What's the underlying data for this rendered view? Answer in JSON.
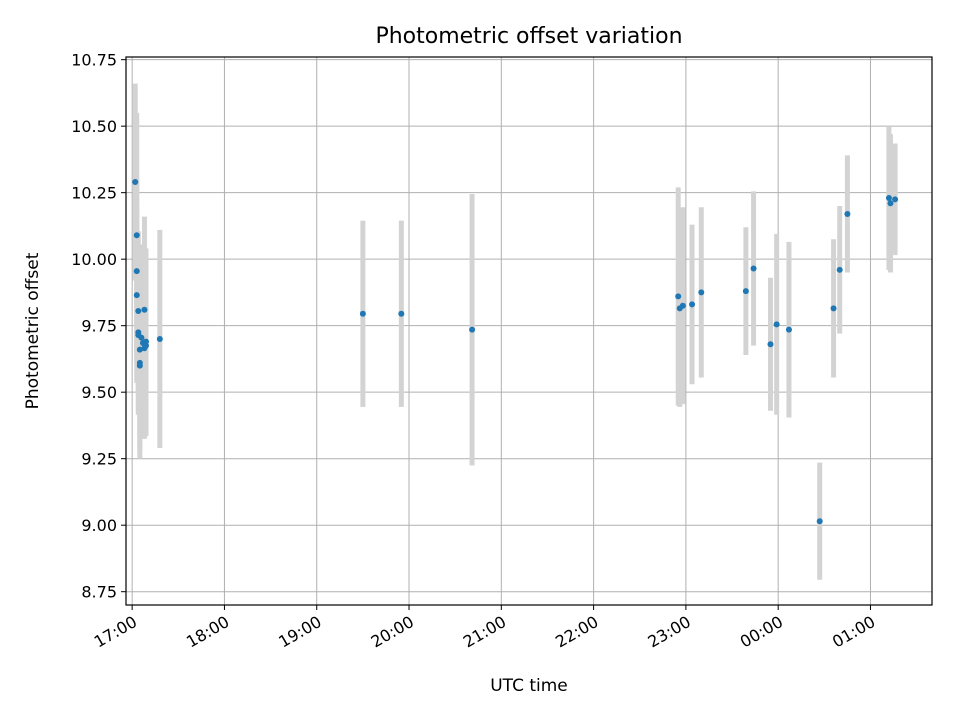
{
  "chart_data": {
    "type": "scatter",
    "title": "Photometric offset variation",
    "xlabel": "UTC time",
    "ylabel": "Photometric offset",
    "x_ticks": [
      "17:00",
      "18:00",
      "19:00",
      "20:00",
      "21:00",
      "22:00",
      "23:00",
      "00:00",
      "01:00"
    ],
    "y_ticks": [
      "8.75",
      "9.00",
      "9.25",
      "9.50",
      "9.75",
      "10.00",
      "10.25",
      "10.50",
      "10.75"
    ],
    "xlim": [
      "16:56",
      "01:40"
    ],
    "ylim": [
      8.7,
      10.76
    ],
    "grid": true,
    "error_bar_color": "#d3d3d3",
    "point_color": "#1f77b4",
    "series": [
      {
        "points": [
          {
            "x": "17:02",
            "y": 10.29,
            "yerr": 0.37
          },
          {
            "x": "17:03",
            "y": 10.09,
            "yerr": 0.46
          },
          {
            "x": "17:03",
            "y": 9.955,
            "yerr": 0.35
          },
          {
            "x": "17:03",
            "y": 9.865,
            "yerr": 0.33
          },
          {
            "x": "17:04",
            "y": 9.805,
            "yerr": 0.3
          },
          {
            "x": "17:04",
            "y": 9.725,
            "yerr": 0.3
          },
          {
            "x": "17:04",
            "y": 9.715,
            "yerr": 0.3
          },
          {
            "x": "17:05",
            "y": 9.66,
            "yerr": 0.33
          },
          {
            "x": "17:05",
            "y": 9.61,
            "yerr": 0.33
          },
          {
            "x": "17:05",
            "y": 9.6,
            "yerr": 0.35
          },
          {
            "x": "17:06",
            "y": 9.705,
            "yerr": 0.35
          },
          {
            "x": "17:07",
            "y": 9.685,
            "yerr": 0.36
          },
          {
            "x": "17:08",
            "y": 9.665,
            "yerr": 0.34
          },
          {
            "x": "17:08",
            "y": 9.81,
            "yerr": 0.35
          },
          {
            "x": "17:09",
            "y": 9.69,
            "yerr": 0.35
          },
          {
            "x": "17:09",
            "y": 9.675,
            "yerr": 0.34
          },
          {
            "x": "17:18",
            "y": 9.7,
            "yerr": 0.41
          },
          {
            "x": "19:30",
            "y": 9.795,
            "yerr": 0.35
          },
          {
            "x": "19:55",
            "y": 9.795,
            "yerr": 0.35
          },
          {
            "x": "20:41",
            "y": 9.735,
            "yerr": 0.51
          },
          {
            "x": "22:55",
            "y": 9.86,
            "yerr": 0.41
          },
          {
            "x": "22:56",
            "y": 9.815,
            "yerr": 0.37
          },
          {
            "x": "22:58",
            "y": 9.825,
            "yerr": 0.37
          },
          {
            "x": "23:04",
            "y": 9.83,
            "yerr": 0.3
          },
          {
            "x": "23:10",
            "y": 9.875,
            "yerr": 0.32
          },
          {
            "x": "23:39",
            "y": 9.88,
            "yerr": 0.24
          },
          {
            "x": "23:44",
            "y": 9.965,
            "yerr": 0.29
          },
          {
            "x": "23:55",
            "y": 9.68,
            "yerr": 0.25
          },
          {
            "x": "23:59",
            "y": 9.755,
            "yerr": 0.34
          },
          {
            "x": "00:07",
            "y": 9.735,
            "yerr": 0.33
          },
          {
            "x": "00:27",
            "y": 9.015,
            "yerr": 0.22
          },
          {
            "x": "00:36",
            "y": 9.815,
            "yerr": 0.26
          },
          {
            "x": "00:40",
            "y": 9.96,
            "yerr": 0.24
          },
          {
            "x": "00:45",
            "y": 10.17,
            "yerr": 0.22
          },
          {
            "x": "01:12",
            "y": 10.23,
            "yerr": 0.27
          },
          {
            "x": "01:13",
            "y": 10.21,
            "yerr": 0.26
          },
          {
            "x": "01:16",
            "y": 10.225,
            "yerr": 0.21
          }
        ]
      }
    ]
  }
}
